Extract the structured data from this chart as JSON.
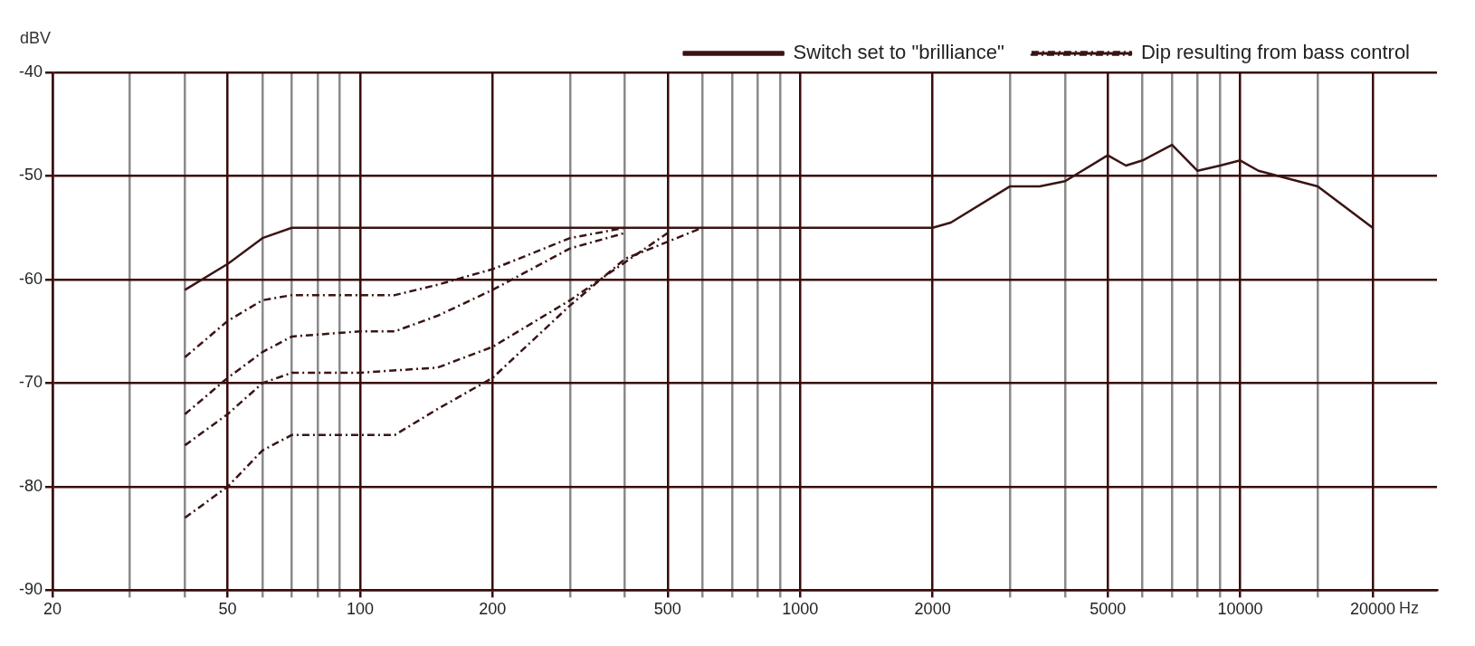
{
  "chart_data": {
    "type": "line",
    "xlabel": "Hz",
    "ylabel": "dBV",
    "log": "x",
    "xlim": [
      20,
      28000
    ],
    "ylim": [
      -90,
      -40
    ],
    "xticks": [
      20,
      {
        "value": 30,
        "label": null
      },
      {
        "value": 40,
        "label": null
      },
      50,
      {
        "value": 60,
        "label": null
      },
      {
        "value": 70,
        "label": null
      },
      {
        "value": 80,
        "label": null
      },
      {
        "value": 90,
        "label": null
      },
      100,
      200,
      {
        "value": 300,
        "label": null
      },
      {
        "value": 400,
        "label": null
      },
      500,
      {
        "value": 600,
        "label": null
      },
      {
        "value": 700,
        "label": null
      },
      {
        "value": 800,
        "label": null
      },
      {
        "value": 900,
        "label": null
      },
      1000,
      2000,
      {
        "value": 3000,
        "label": null
      },
      {
        "value": 4000,
        "label": null
      },
      5000,
      {
        "value": 6000,
        "label": null
      },
      {
        "value": 7000,
        "label": null
      },
      {
        "value": 8000,
        "label": null
      },
      {
        "value": 9000,
        "label": null
      },
      10000,
      {
        "value": 15000,
        "label": null
      },
      20000
    ],
    "yticks": [
      -90,
      -80,
      -70,
      -60,
      -50,
      -40
    ],
    "grid": true,
    "legend": "top",
    "marker": "none",
    "series": [
      {
        "name": "Switch set to \"brilliance\"",
        "color": "#3a1414",
        "line_style": "solid",
        "x": [
          40,
          50,
          60,
          70,
          100,
          500,
          1000,
          2000,
          2200,
          3000,
          3500,
          4000,
          5000,
          5500,
          6000,
          7000,
          8000,
          9000,
          10000,
          11000,
          15000,
          20000
        ],
        "values": [
          -61,
          -58.5,
          -56,
          -55,
          -55,
          -55,
          -55,
          -55,
          -54.5,
          -51,
          -51,
          -50.5,
          -48,
          -49,
          -48.5,
          -47,
          -49.5,
          -49,
          -48.5,
          -49.5,
          -51,
          -55
        ]
      },
      {
        "name": "Dip resulting from bass control",
        "color": "#3a1414",
        "line_style": "dashed",
        "x": [
          40,
          50,
          60,
          70,
          100,
          120,
          150,
          200,
          300,
          400
        ],
        "values": [
          -67.5,
          -64,
          -62,
          -61.5,
          -61.5,
          -61.5,
          -60.5,
          -59,
          -56,
          -55
        ]
      },
      {
        "color": "#3a1414",
        "line_style": "dashed",
        "x": [
          40,
          50,
          60,
          70,
          100,
          120,
          150,
          200,
          300,
          400
        ],
        "values": [
          -73,
          -69.5,
          -67,
          -65.5,
          -65,
          -65,
          -63.5,
          -61,
          -57,
          -55.5
        ]
      },
      {
        "color": "#3a1414",
        "line_style": "dashed",
        "x": [
          40,
          50,
          60,
          70,
          100,
          150,
          200,
          300,
          500
        ],
        "values": [
          -76,
          -73,
          -70,
          -69,
          -69,
          -68.5,
          -66.5,
          -62,
          -55.5
        ]
      },
      {
        "color": "#3a1414",
        "line_style": "dashed",
        "x": [
          40,
          50,
          60,
          70,
          100,
          120,
          150,
          200,
          300,
          400,
          600
        ],
        "values": [
          -83,
          -80,
          -76.5,
          -75,
          -75,
          -75,
          -72.5,
          -69.5,
          -62.5,
          -58,
          -55
        ]
      }
    ]
  }
}
